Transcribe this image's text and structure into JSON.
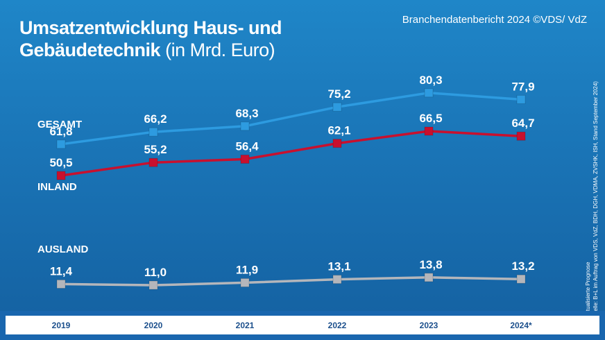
{
  "header": {
    "title_line1": "Umsatzentwicklung Haus- und",
    "title_line2_bold": "Gebäudetechnik",
    "title_line2_unit": "(in Mrd. Euro)",
    "source": "Branchendatenbericht 2024 ©VDS/ VdZ"
  },
  "footnote": {
    "line1": "* aktualisierte Prognose",
    "line2": "(Quelle: B+L im Auftrag von VDS, VdZ, BDH, DGH, VDMA, ZVSHK, ISH, Stand September 2024)"
  },
  "chart_data": {
    "type": "line",
    "title": "Umsatzentwicklung Haus- und Gebäudetechnik (in Mrd. Euro)",
    "categories": [
      "2019",
      "2020",
      "2021",
      "2022",
      "2023",
      "2024*"
    ],
    "series": [
      {
        "name": "GESAMT",
        "values": [
          61.8,
          66.2,
          68.3,
          75.2,
          80.3,
          77.9
        ],
        "labels": [
          "61,8",
          "66,2",
          "68,3",
          "75,2",
          "80,3",
          "77,9"
        ],
        "color": "#2d9be0"
      },
      {
        "name": "INLAND",
        "values": [
          50.5,
          55.2,
          56.4,
          62.1,
          66.5,
          64.7
        ],
        "labels": [
          "50,5",
          "55,2",
          "56,4",
          "62,1",
          "66,5",
          "64,7"
        ],
        "color": "#c8102e"
      },
      {
        "name": "AUSLAND",
        "values": [
          11.4,
          11.0,
          11.9,
          13.1,
          13.8,
          13.2
        ],
        "labels": [
          "11,4",
          "11,0",
          "11,9",
          "13,1",
          "13,8",
          "13,2"
        ],
        "color": "#b4b6bb"
      }
    ],
    "grid": false,
    "legend": "left, next to each series"
  },
  "colors": {
    "background_top": "#1f86c8",
    "background_bottom": "#1460a0",
    "axis_label": "#1b4f8c",
    "text": "#ffffff"
  }
}
